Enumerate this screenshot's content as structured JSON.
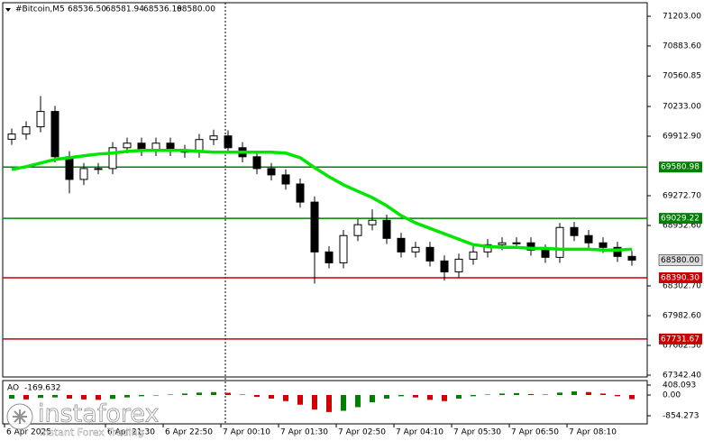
{
  "chart_data": {
    "type": "candlestick",
    "symbol": "#Bitcoin,M5",
    "header_ohlc": {
      "values": [
        68536.5,
        68581.94,
        68536.19,
        68580
      ],
      "value_labels": [
        "68536.50",
        "68581.94",
        "68536.19",
        "68580.00"
      ]
    },
    "categories": [
      "6 Apr 2025",
      null,
      null,
      null,
      null,
      null,
      null,
      "6 Apr 21:30",
      null,
      null,
      null,
      "6 Apr 22:50",
      null,
      null,
      null,
      "7 Apr 00:10",
      null,
      null,
      null,
      "7 Apr 01:30",
      null,
      null,
      null,
      "7 Apr 02:50",
      null,
      null,
      null,
      "7 Apr 04:10",
      null,
      null,
      null,
      "7 Apr 05:30",
      null,
      null,
      null,
      "7 Apr 06:50",
      null,
      null,
      null,
      "7 Apr 08:10",
      null,
      null,
      null,
      null
    ],
    "open": [
      69880,
      69936,
      70014,
      70179,
      69692,
      69448,
      69565,
      69565,
      69789,
      69838,
      69760,
      69838,
      69760,
      69741,
      69877,
      69916,
      69789,
      69692,
      69565,
      69497,
      69399,
      69204,
      68668,
      68551,
      68844,
      68961,
      69009,
      68814,
      68668,
      68717,
      68571,
      68454,
      68590,
      68668,
      68746,
      68766,
      68766,
      68688,
      68610,
      68931,
      68844,
      68766,
      68717,
      68620
    ],
    "high": [
      69996,
      70074,
      70345,
      70239,
      69752,
      69625,
      69625,
      69849,
      69898,
      69898,
      69898,
      69898,
      69820,
      69937,
      69984,
      69976,
      69849,
      69752,
      69625,
      69557,
      69459,
      69264,
      68728,
      68904,
      69021,
      69126,
      69069,
      68874,
      68777,
      68777,
      68631,
      68650,
      68728,
      68806,
      68826,
      68826,
      68826,
      68748,
      68980,
      68991,
      68904,
      68826,
      68777,
      68680
    ],
    "low": [
      69820,
      69876,
      69954,
      69632,
      69300,
      69388,
      69505,
      69505,
      69729,
      69700,
      69700,
      69700,
      69681,
      69681,
      69817,
      69729,
      69632,
      69505,
      69437,
      69339,
      69144,
      68327,
      68491,
      68491,
      68784,
      68901,
      68754,
      68608,
      68608,
      68511,
      68360,
      68394,
      68530,
      68608,
      68686,
      68706,
      68628,
      68550,
      68550,
      68784,
      68706,
      68657,
      68560,
      68520
    ],
    "close": [
      69936,
      70014,
      70179,
      69692,
      69448,
      69565,
      69565,
      69789,
      69838,
      69760,
      69838,
      69760,
      69741,
      69877,
      69916,
      69789,
      69692,
      69565,
      69497,
      69399,
      69204,
      68668,
      68551,
      68844,
      68961,
      69009,
      68814,
      68668,
      68717,
      68571,
      68454,
      68590,
      68668,
      68746,
      68766,
      68766,
      68688,
      68610,
      68931,
      68844,
      68766,
      68717,
      68620,
      68580
    ],
    "candle_color": "#000000",
    "ma": {
      "color": "#00e600",
      "values": [
        69555,
        69585,
        69624,
        69663,
        69682,
        69702,
        69721,
        69731,
        69750,
        69760,
        69760,
        69760,
        69760,
        69750,
        69741,
        69741,
        69741,
        69741,
        69741,
        69731,
        69682,
        69575,
        69477,
        69390,
        69321,
        69253,
        69165,
        69058,
        68980,
        68922,
        68863,
        68805,
        68746,
        68727,
        68717,
        68717,
        68707,
        68707,
        68697,
        68697,
        68697,
        68688,
        68688,
        68697
      ]
    },
    "levels": {
      "values": [
        69580.98,
        69029.22,
        68390.3,
        67731.67
      ],
      "value_labels": [
        "69580.98",
        "69029.22",
        "68390.30",
        "67731.67"
      ],
      "colors": [
        "#008000",
        "#008000",
        "#cc0000",
        "#cc0000"
      ]
    },
    "last_price": {
      "value": 68580,
      "label": "68580.00"
    },
    "ylim": [
      67323,
      71349
    ],
    "yticks": [
      {
        "value": 71203,
        "label": "71203.00"
      },
      {
        "value": 70883.6,
        "label": "70883.60"
      },
      {
        "value": 70560.85,
        "label": "70560.85"
      },
      {
        "value": 70233,
        "label": "70233.00"
      },
      {
        "value": 69912.9,
        "label": "69912.90"
      },
      {
        "value": 69272.7,
        "label": "69272.70"
      },
      {
        "value": 68952.6,
        "label": "68952.60"
      },
      {
        "value": 68302.7,
        "label": "68302.70"
      },
      {
        "value": 67982.6,
        "label": "67982.60"
      },
      {
        "value": 67662.5,
        "label": "67662.50"
      },
      {
        "value": 67342.4,
        "label": "67342.40"
      }
    ],
    "ao": {
      "name": "AO",
      "up_color": "#008000",
      "down_color": "#cc0000",
      "values": [
        -150,
        -180,
        -120,
        -100,
        -150,
        -180,
        -200,
        -160,
        -100,
        -50,
        -20,
        20,
        60,
        100,
        120,
        90,
        20,
        -80,
        -150,
        -250,
        -400,
        -600,
        -700,
        -650,
        -500,
        -300,
        -150,
        -50,
        -100,
        -200,
        -250,
        -150,
        -50,
        20,
        60,
        80,
        40,
        20,
        100,
        150,
        120,
        60,
        -50,
        -169.632
      ],
      "ylim": [
        -1188,
        594
      ],
      "yticks": [
        408.093,
        {
          "value": 0,
          "label": "0.00"
        },
        -854.273
      ]
    },
    "logo": {
      "name": "instaforex",
      "tagline": "Instant Forex Trading"
    }
  }
}
